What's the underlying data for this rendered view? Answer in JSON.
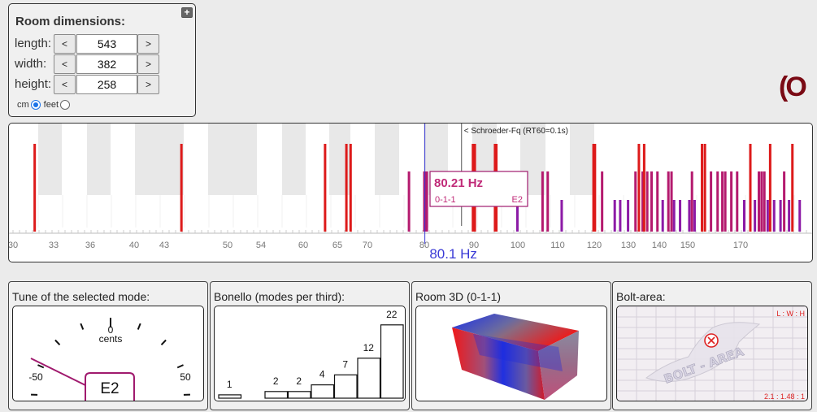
{
  "room": {
    "title": "Room dimensions:",
    "expand_icon": "plus-box-icon",
    "expand_label": "+",
    "dims": [
      {
        "label": "length:",
        "value": "543"
      },
      {
        "label": "width:",
        "value": "382"
      },
      {
        "label": "height:",
        "value": "258"
      }
    ],
    "dec_label": "<",
    "inc_label": ">",
    "units": [
      {
        "label": "cm",
        "selected": true
      },
      {
        "label": "feet",
        "selected": false
      }
    ]
  },
  "brand": {
    "text": "(O",
    "color": "#7a0a14"
  },
  "spectrum": {
    "schroeder_label": "< Schroeder-Fq (RT60=0.1s)",
    "schroeder_hz": 87.5,
    "cursor_hz": 80.1,
    "cursor_label": "80.1 Hz",
    "tooltip": {
      "freq": "80.21 Hz",
      "mode": "0-1-1",
      "note": "E2"
    },
    "ticks": [
      30,
      33,
      36,
      40,
      43,
      50,
      54,
      60,
      65,
      70,
      80,
      90,
      100,
      110,
      120,
      130,
      140,
      150,
      170
    ],
    "tick_labels": [
      "30",
      "33",
      "36",
      "40",
      "43",
      "50",
      "54",
      "60",
      "65",
      "70",
      "80",
      "90",
      "100",
      "110",
      "120",
      "130",
      "140",
      "150",
      "170"
    ],
    "colors": {
      "axial": "#dd1a1a",
      "tangential": "#b41a6e",
      "oblique": "#8c1aa6",
      "cursor": "#3a3ad6"
    },
    "modes": [
      {
        "hz": 31.6,
        "type": "axial"
      },
      {
        "hz": 44.9,
        "type": "axial"
      },
      {
        "hz": 63.2,
        "type": "axial"
      },
      {
        "hz": 66.5,
        "type": "axial"
      },
      {
        "hz": 67.2,
        "type": "axial"
      },
      {
        "hz": 77.3,
        "type": "tangential"
      },
      {
        "hz": 80.0,
        "type": "tangential"
      },
      {
        "hz": 80.2,
        "type": "tangential"
      },
      {
        "hz": 80.5,
        "type": "tangential"
      },
      {
        "hz": 89.8,
        "type": "axial"
      },
      {
        "hz": 90.2,
        "type": "axial"
      },
      {
        "hz": 94.8,
        "type": "axial"
      },
      {
        "hz": 95.1,
        "type": "axial"
      },
      {
        "hz": 99.9,
        "type": "oblique"
      },
      {
        "hz": 106.2,
        "type": "tangential"
      },
      {
        "hz": 107.5,
        "type": "tangential"
      },
      {
        "hz": 111.1,
        "type": "oblique"
      },
      {
        "hz": 119.8,
        "type": "axial"
      },
      {
        "hz": 120.2,
        "type": "axial"
      },
      {
        "hz": 122.3,
        "type": "tangential"
      },
      {
        "hz": 126.0,
        "type": "oblique"
      },
      {
        "hz": 127.6,
        "type": "oblique"
      },
      {
        "hz": 129.9,
        "type": "oblique"
      },
      {
        "hz": 132.3,
        "type": "tangential"
      },
      {
        "hz": 133.4,
        "type": "axial"
      },
      {
        "hz": 134.6,
        "type": "tangential"
      },
      {
        "hz": 135.1,
        "type": "axial"
      },
      {
        "hz": 136.1,
        "type": "tangential"
      },
      {
        "hz": 137.5,
        "type": "tangential"
      },
      {
        "hz": 139.4,
        "type": "tangential"
      },
      {
        "hz": 141.2,
        "type": "oblique"
      },
      {
        "hz": 143.2,
        "type": "tangential"
      },
      {
        "hz": 144.3,
        "type": "tangential"
      },
      {
        "hz": 145.2,
        "type": "oblique"
      },
      {
        "hz": 147.3,
        "type": "oblique"
      },
      {
        "hz": 150.6,
        "type": "oblique"
      },
      {
        "hz": 151.6,
        "type": "tangential"
      },
      {
        "hz": 152.6,
        "type": "oblique"
      },
      {
        "hz": 155.4,
        "type": "axial"
      },
      {
        "hz": 156.5,
        "type": "axial"
      },
      {
        "hz": 158.8,
        "type": "tangential"
      },
      {
        "hz": 161.3,
        "type": "tangential"
      },
      {
        "hz": 163.1,
        "type": "tangential"
      },
      {
        "hz": 164.2,
        "type": "tangential"
      },
      {
        "hz": 166.5,
        "type": "tangential"
      },
      {
        "hz": 168.7,
        "type": "tangential"
      },
      {
        "hz": 171.2,
        "type": "oblique"
      },
      {
        "hz": 173.2,
        "type": "axial"
      },
      {
        "hz": 174.7,
        "type": "oblique"
      },
      {
        "hz": 176.0,
        "type": "tangential"
      },
      {
        "hz": 176.9,
        "type": "tangential"
      },
      {
        "hz": 177.8,
        "type": "tangential"
      },
      {
        "hz": 178.9,
        "type": "oblique"
      },
      {
        "hz": 179.7,
        "type": "axial"
      },
      {
        "hz": 181.0,
        "type": "oblique"
      },
      {
        "hz": 183.1,
        "type": "oblique"
      },
      {
        "hz": 184.3,
        "type": "tangential"
      },
      {
        "hz": 185.9,
        "type": "oblique"
      },
      {
        "hz": 187.0,
        "type": "axial"
      },
      {
        "hz": 189.4,
        "type": "oblique"
      }
    ]
  },
  "tune": {
    "title": "Tune of the selected mode:",
    "zero_label": "0",
    "unit_label": "cents",
    "min_label": "-50",
    "max_label": "50",
    "note": "E2",
    "needle_cents": -57,
    "needle_color": "#a01a6e"
  },
  "bonello": {
    "title": "Bonello (modes per third):",
    "values": [
      1,
      0,
      2,
      2,
      4,
      7,
      12,
      22
    ]
  },
  "room3d": {
    "title": "Room 3D (0-1-1)"
  },
  "bolt": {
    "title": "Bolt-area:",
    "ratio_header": "L : W : H",
    "ratio_value": "2.1 : 1.48 : 1",
    "watermark": "BOLT - AREA",
    "marker_icon": "target-icon"
  }
}
